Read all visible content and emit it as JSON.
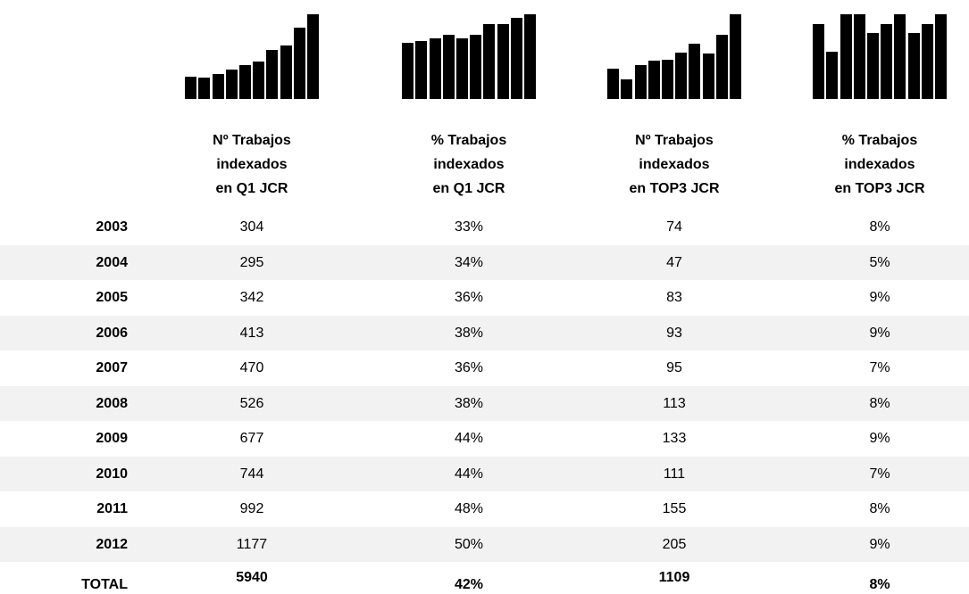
{
  "table": {
    "years": [
      2003,
      2004,
      2005,
      2006,
      2007,
      2008,
      2009,
      2010,
      2011,
      2012
    ],
    "total_label": "TOTAL",
    "columns": [
      {
        "header": [
          "Nº Trabajos",
          "indexados",
          "en Q1 JCR"
        ],
        "values": [
          304,
          295,
          342,
          413,
          470,
          526,
          677,
          744,
          992,
          1177
        ],
        "total": 5940
      },
      {
        "header": [
          "% Trabajos",
          "indexados",
          "en Q1 JCR"
        ],
        "values": [
          33,
          34,
          36,
          38,
          36,
          38,
          44,
          44,
          48,
          50
        ],
        "value_labels": [
          "33%",
          "34%",
          "36%",
          "38%",
          "36%",
          "38%",
          "44%",
          "44%",
          "48%",
          "50%"
        ],
        "total": 42,
        "total_label": "42%"
      },
      {
        "header": [
          "Nº Trabajos",
          "indexados",
          "en TOP3 JCR"
        ],
        "values": [
          74,
          47,
          83,
          93,
          95,
          113,
          133,
          111,
          155,
          205
        ],
        "total": 1109
      },
      {
        "header": [
          "% Trabajos",
          "indexados",
          "en TOP3 JCR"
        ],
        "values": [
          8,
          5,
          9,
          9,
          7,
          8,
          9,
          7,
          8,
          9
        ],
        "value_labels": [
          "8%",
          "5%",
          "9%",
          "9%",
          "7%",
          "8%",
          "9%",
          "7%",
          "8%",
          "9%"
        ],
        "total": 8,
        "total_label": "8%"
      }
    ]
  }
}
